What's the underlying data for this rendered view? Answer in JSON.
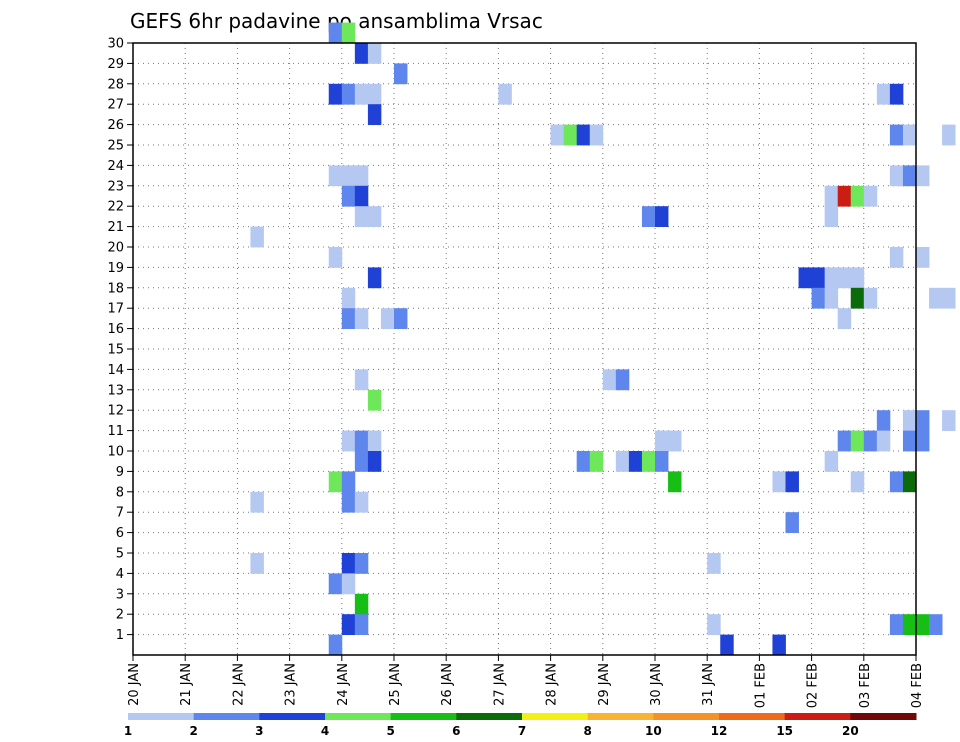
{
  "chart_data": {
    "type": "heatmap",
    "title": "GEFS 6hr padavine po ansamblima Vrsac",
    "x_ticks": [
      "20 JAN",
      "21 JAN",
      "22 JAN",
      "23 JAN",
      "24 JAN",
      "25 JAN",
      "26 JAN",
      "27 JAN",
      "28 JAN",
      "29 JAN",
      "30 JAN",
      "31 JAN",
      "01 FEB",
      "02 FEB",
      "03 FEB",
      "04 FEB"
    ],
    "y_ticks": [
      "1",
      "2",
      "3",
      "4",
      "5",
      "6",
      "7",
      "8",
      "9",
      "10",
      "11",
      "12",
      "13",
      "14",
      "15",
      "16",
      "17",
      "18",
      "19",
      "20",
      "21",
      "22",
      "23",
      "24",
      "25",
      "26",
      "27",
      "28",
      "29",
      "30"
    ],
    "y_range": [
      0,
      30
    ],
    "x_step_hours": 6,
    "grid": "dotted",
    "legend": {
      "position": "bottom",
      "levels": [
        "1",
        "2",
        "3",
        "4",
        "5",
        "6",
        "7",
        "8",
        "10",
        "12",
        "15",
        "20"
      ],
      "colors": [
        "#b5c8f2",
        "#5e86ec",
        "#1f41d6",
        "#6ee85a",
        "#16be16",
        "#0b6b0b",
        "#f2f016",
        "#f8b332",
        "#f29227",
        "#ee6a1d",
        "#cc1d14",
        "#730808"
      ]
    },
    "cells": [
      {
        "member": 30,
        "step": 15,
        "level": 2
      },
      {
        "member": 30,
        "step": 16,
        "level": 4
      },
      {
        "member": 29,
        "step": 17,
        "level": 3
      },
      {
        "member": 29,
        "step": 18,
        "level": 1
      },
      {
        "member": 28,
        "step": 20,
        "level": 2
      },
      {
        "member": 27,
        "step": 15,
        "level": 3
      },
      {
        "member": 27,
        "step": 16,
        "level": 2
      },
      {
        "member": 27,
        "step": 17,
        "level": 1
      },
      {
        "member": 27,
        "step": 18,
        "level": 1
      },
      {
        "member": 27,
        "step": 28,
        "level": 1
      },
      {
        "member": 27,
        "step": 57,
        "level": 1
      },
      {
        "member": 27,
        "step": 58,
        "level": 3
      },
      {
        "member": 26,
        "step": 18,
        "level": 3
      },
      {
        "member": 25,
        "step": 32,
        "level": 1
      },
      {
        "member": 25,
        "step": 33,
        "level": 4
      },
      {
        "member": 25,
        "step": 34,
        "level": 3
      },
      {
        "member": 25,
        "step": 35,
        "level": 1
      },
      {
        "member": 25,
        "step": 58,
        "level": 2
      },
      {
        "member": 25,
        "step": 59,
        "level": 1
      },
      {
        "member": 25,
        "step": 62,
        "level": 1
      },
      {
        "member": 23,
        "step": 15,
        "level": 1
      },
      {
        "member": 23,
        "step": 16,
        "level": 1
      },
      {
        "member": 23,
        "step": 17,
        "level": 1
      },
      {
        "member": 23,
        "step": 58,
        "level": 1
      },
      {
        "member": 23,
        "step": 59,
        "level": 2
      },
      {
        "member": 23,
        "step": 60,
        "level": 1
      },
      {
        "member": 22,
        "step": 16,
        "level": 2
      },
      {
        "member": 22,
        "step": 17,
        "level": 3
      },
      {
        "member": 22,
        "step": 53,
        "level": 1
      },
      {
        "member": 22,
        "step": 54,
        "level": 11
      },
      {
        "member": 22,
        "step": 55,
        "level": 4
      },
      {
        "member": 22,
        "step": 56,
        "level": 1
      },
      {
        "member": 21,
        "step": 17,
        "level": 1
      },
      {
        "member": 21,
        "step": 18,
        "level": 1
      },
      {
        "member": 21,
        "step": 39,
        "level": 2
      },
      {
        "member": 21,
        "step": 40,
        "level": 3
      },
      {
        "member": 21,
        "step": 53,
        "level": 1
      },
      {
        "member": 20,
        "step": 9,
        "level": 1
      },
      {
        "member": 19,
        "step": 15,
        "level": 1
      },
      {
        "member": 19,
        "step": 58,
        "level": 1
      },
      {
        "member": 19,
        "step": 60,
        "level": 1
      },
      {
        "member": 18,
        "step": 18,
        "level": 3
      },
      {
        "member": 18,
        "step": 51,
        "level": 3
      },
      {
        "member": 18,
        "step": 52,
        "level": 3
      },
      {
        "member": 18,
        "step": 53,
        "level": 1
      },
      {
        "member": 18,
        "step": 54,
        "level": 1
      },
      {
        "member": 18,
        "step": 55,
        "level": 1
      },
      {
        "member": 17,
        "step": 16,
        "level": 1
      },
      {
        "member": 17,
        "step": 52,
        "level": 2
      },
      {
        "member": 17,
        "step": 53,
        "level": 1
      },
      {
        "member": 17,
        "step": 55,
        "level": 6
      },
      {
        "member": 17,
        "step": 56,
        "level": 1
      },
      {
        "member": 17,
        "step": 61,
        "level": 1
      },
      {
        "member": 17,
        "step": 62,
        "level": 1
      },
      {
        "member": 16,
        "step": 16,
        "level": 2
      },
      {
        "member": 16,
        "step": 17,
        "level": 1
      },
      {
        "member": 16,
        "step": 19,
        "level": 1
      },
      {
        "member": 16,
        "step": 20,
        "level": 2
      },
      {
        "member": 16,
        "step": 54,
        "level": 1
      },
      {
        "member": 13,
        "step": 17,
        "level": 1
      },
      {
        "member": 13,
        "step": 36,
        "level": 1
      },
      {
        "member": 13,
        "step": 37,
        "level": 2
      },
      {
        "member": 12,
        "step": 18,
        "level": 4
      },
      {
        "member": 11,
        "step": 57,
        "level": 2
      },
      {
        "member": 11,
        "step": 59,
        "level": 1
      },
      {
        "member": 11,
        "step": 60,
        "level": 2
      },
      {
        "member": 11,
        "step": 62,
        "level": 1
      },
      {
        "member": 10,
        "step": 16,
        "level": 1
      },
      {
        "member": 10,
        "step": 17,
        "level": 2
      },
      {
        "member": 10,
        "step": 18,
        "level": 1
      },
      {
        "member": 10,
        "step": 40,
        "level": 1
      },
      {
        "member": 10,
        "step": 41,
        "level": 1
      },
      {
        "member": 10,
        "step": 54,
        "level": 2
      },
      {
        "member": 10,
        "step": 55,
        "level": 4
      },
      {
        "member": 10,
        "step": 56,
        "level": 2
      },
      {
        "member": 10,
        "step": 57,
        "level": 1
      },
      {
        "member": 10,
        "step": 59,
        "level": 2
      },
      {
        "member": 10,
        "step": 60,
        "level": 2
      },
      {
        "member": 9,
        "step": 17,
        "level": 2
      },
      {
        "member": 9,
        "step": 18,
        "level": 3
      },
      {
        "member": 9,
        "step": 34,
        "level": 2
      },
      {
        "member": 9,
        "step": 35,
        "level": 4
      },
      {
        "member": 9,
        "step": 37,
        "level": 1
      },
      {
        "member": 9,
        "step": 38,
        "level": 3
      },
      {
        "member": 9,
        "step": 39,
        "level": 4
      },
      {
        "member": 9,
        "step": 40,
        "level": 2
      },
      {
        "member": 9,
        "step": 53,
        "level": 1
      },
      {
        "member": 8,
        "step": 15,
        "level": 4
      },
      {
        "member": 8,
        "step": 16,
        "level": 2
      },
      {
        "member": 8,
        "step": 41,
        "level": 5
      },
      {
        "member": 8,
        "step": 49,
        "level": 1
      },
      {
        "member": 8,
        "step": 50,
        "level": 3
      },
      {
        "member": 8,
        "step": 55,
        "level": 1
      },
      {
        "member": 8,
        "step": 58,
        "level": 2
      },
      {
        "member": 8,
        "step": 59,
        "level": 6
      },
      {
        "member": 7,
        "step": 9,
        "level": 1
      },
      {
        "member": 7,
        "step": 16,
        "level": 2
      },
      {
        "member": 7,
        "step": 17,
        "level": 1
      },
      {
        "member": 6,
        "step": 50,
        "level": 2
      },
      {
        "member": 4,
        "step": 9,
        "level": 1
      },
      {
        "member": 4,
        "step": 16,
        "level": 3
      },
      {
        "member": 4,
        "step": 17,
        "level": 2
      },
      {
        "member": 4,
        "step": 44,
        "level": 1
      },
      {
        "member": 3,
        "step": 15,
        "level": 2
      },
      {
        "member": 3,
        "step": 16,
        "level": 1
      },
      {
        "member": 2,
        "step": 17,
        "level": 5
      },
      {
        "member": 1,
        "step": 16,
        "level": 3
      },
      {
        "member": 1,
        "step": 17,
        "level": 2
      },
      {
        "member": 1,
        "step": 44,
        "level": 1
      },
      {
        "member": 1,
        "step": 58,
        "level": 2
      },
      {
        "member": 1,
        "step": 59,
        "level": 5
      },
      {
        "member": 1,
        "step": 60,
        "level": 5
      },
      {
        "member": 1,
        "step": 61,
        "level": 2
      },
      {
        "member": 0,
        "step": 15,
        "level": 2
      },
      {
        "member": 0,
        "step": 45,
        "level": 3
      },
      {
        "member": 0,
        "step": 49,
        "level": 3
      }
    ]
  }
}
